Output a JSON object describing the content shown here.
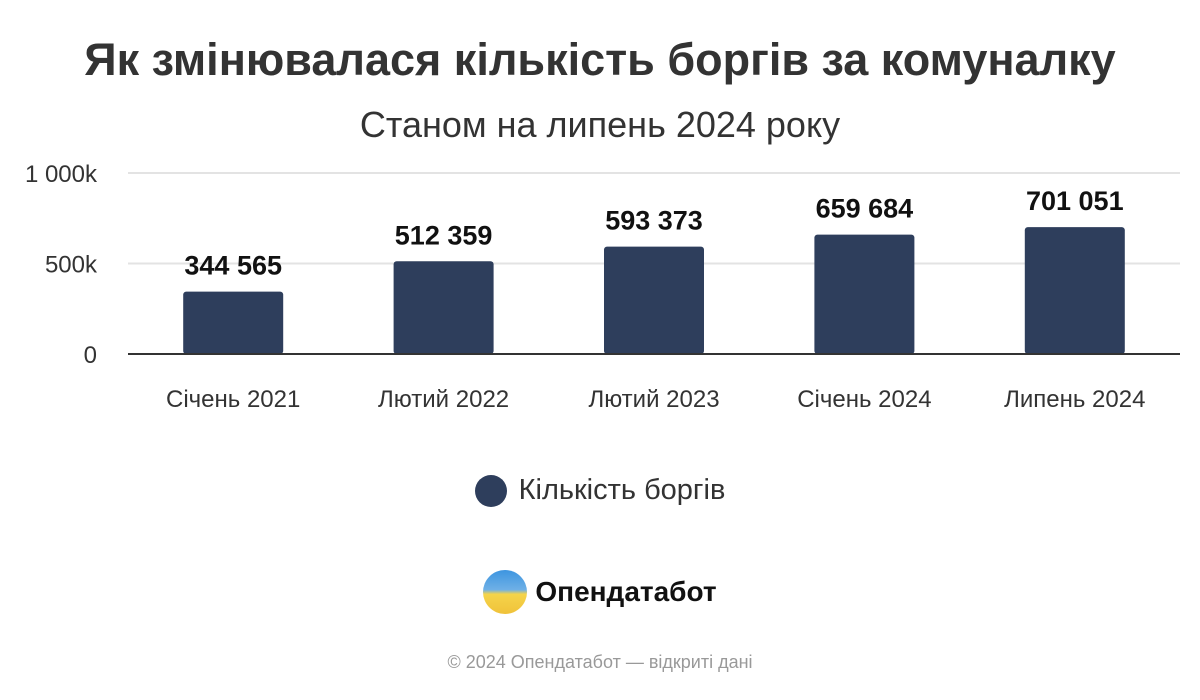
{
  "chart_data": {
    "type": "bar",
    "title": "Як змінювалася кількість боргів за комуналку",
    "subtitle": "Станом на липень 2024 року",
    "categories": [
      "Січень 2021",
      "Лютий 2022",
      "Лютий 2023",
      "Січень 2024",
      "Липень 2024"
    ],
    "series": [
      {
        "name": "Кількість боргів",
        "values": [
          344565,
          512359,
          593373,
          659684,
          701051
        ],
        "labels": [
          "344 565",
          "512 359",
          "593 373",
          "659 684",
          "701 051"
        ],
        "color": "#2e3e5c"
      }
    ],
    "yticks": [
      {
        "value": 0,
        "label": "0"
      },
      {
        "value": 500000,
        "label": "500k"
      },
      {
        "value": 1000000,
        "label": "1 000k"
      }
    ],
    "ylim": [
      0,
      1000000
    ],
    "xlabel": "",
    "ylabel": "",
    "grid": true,
    "legend": "bottom-center"
  },
  "branding": {
    "name": "Опендатабот",
    "footer": "© 2024 Опендатабот — відкриті дані"
  }
}
